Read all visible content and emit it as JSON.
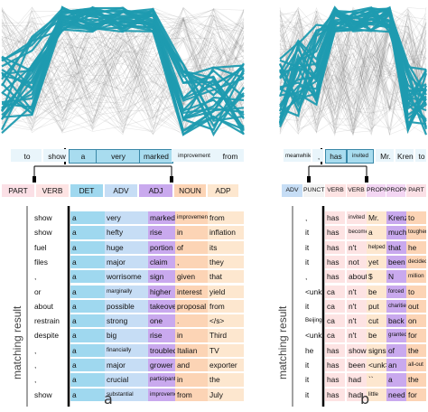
{
  "panels": [
    {
      "id": "a",
      "caption": "a",
      "side_label": "matching result",
      "sentence": [
        "to",
        "show",
        "a",
        "very",
        "marked",
        "improvement",
        "from"
      ],
      "pos_tags": [
        "PART",
        "VERB",
        "DET",
        "ADV",
        "ADJ",
        "NOUN",
        "ADP"
      ],
      "results": [
        [
          "show",
          "a",
          "very",
          "marked",
          "improvement",
          "from"
        ],
        [
          "show",
          "a",
          "hefty",
          "rise",
          "in",
          "inflation"
        ],
        [
          "fuel",
          "a",
          "huge",
          "portion",
          "of",
          "its"
        ],
        [
          "files",
          "a",
          "major",
          "claim",
          ",",
          "they"
        ],
        [
          ",",
          "a",
          "worrisome",
          "sign",
          "given",
          "that"
        ],
        [
          "or",
          "a",
          "marginally",
          "higher",
          "interest",
          "yield"
        ],
        [
          "about",
          "a",
          "possible",
          "takeover",
          "proposal",
          "from"
        ],
        [
          "restrain",
          "a",
          "strong",
          "one",
          ".",
          "</s>"
        ],
        [
          "despite",
          "a",
          "big",
          "rise",
          "in",
          "Third"
        ],
        [
          ",",
          "a",
          "financially",
          "troubled",
          "Italian",
          "TV"
        ],
        [
          ",",
          "a",
          "major",
          "grower",
          "and",
          "exporter"
        ],
        [
          ",",
          "a",
          "crucial",
          "participant",
          "in",
          "the"
        ],
        [
          "show",
          "a",
          "substantial",
          "improvement",
          "from",
          "July"
        ]
      ]
    },
    {
      "id": "b",
      "caption": "b",
      "side_label": "matching result",
      "sentence": [
        "meanwhile",
        ",",
        "has",
        "invited",
        "Mr.",
        "Krenz",
        "to"
      ],
      "pos_tags": [
        "ADV",
        "PUNCT",
        "VERB",
        "VERB",
        "PROPN",
        "PROPN",
        "PART"
      ],
      "results": [
        [
          ",",
          "has",
          "invited",
          "Mr.",
          "Krenz",
          "to"
        ],
        [
          "it",
          "has",
          "become",
          "a",
          "much",
          "tougher"
        ],
        [
          "it",
          "has",
          "n't",
          "helped",
          "that",
          "he"
        ],
        [
          "it",
          "has",
          "not",
          "yet",
          "been",
          "decided"
        ],
        [
          ",",
          "has",
          "about",
          "$",
          "N",
          "million"
        ],
        [
          "<unk>",
          "ca",
          "n't",
          "be",
          "forced",
          "to"
        ],
        [
          "it",
          "ca",
          "n't",
          "put",
          "charities",
          "out"
        ],
        [
          "Beijing",
          "ca",
          "n't",
          "cut",
          "back",
          "on"
        ],
        [
          "<unk>",
          "ca",
          "n't",
          "be",
          "granted",
          "for"
        ],
        [
          "he",
          "has",
          "shown",
          "signs",
          "of",
          "the"
        ],
        [
          "it",
          "has",
          "been",
          "<unk>",
          "an",
          "all-out"
        ],
        [
          "it",
          "has",
          "had",
          "``",
          "a",
          "the"
        ],
        [
          "it",
          "has",
          "had",
          "little",
          "need",
          "for"
        ]
      ]
    }
  ],
  "colors": {
    "teal": "#1f9bb0",
    "pos_part": "#fbe0e6",
    "pos_verb": "#fde3e3",
    "pos_det": "#9fd8ef",
    "pos_adv": "#c6ddf5",
    "pos_adj": "#c9a9ee",
    "pos_noun": "#fcd4b5",
    "pos_adp": "#fde7cf"
  }
}
